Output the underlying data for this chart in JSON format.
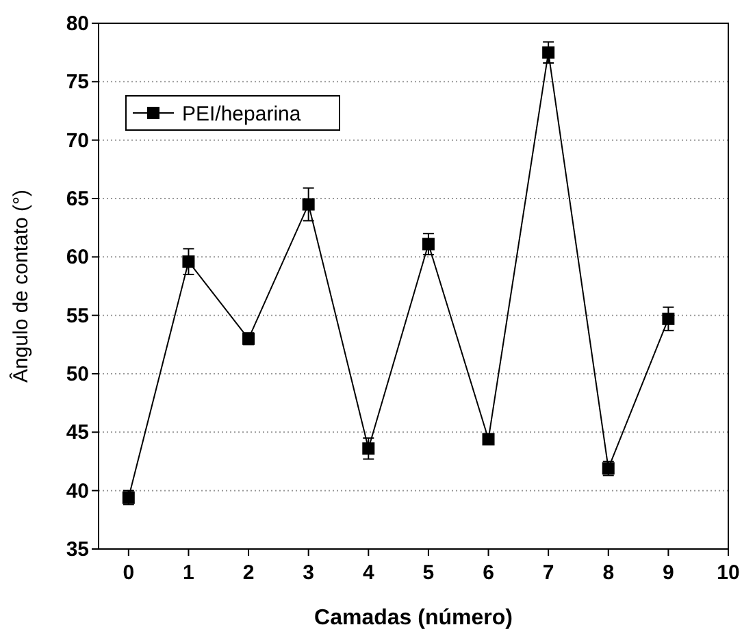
{
  "chart_data": {
    "type": "line",
    "xlabel": "Camadas (número)",
    "ylabel": "Ângulo de contato (°)",
    "x": [
      0,
      1,
      2,
      3,
      4,
      5,
      6,
      7,
      8,
      9
    ],
    "series": [
      {
        "name": "PEI/heparina",
        "color": "#000000",
        "values": [
          39.4,
          59.6,
          53.0,
          64.5,
          43.6,
          61.1,
          44.4,
          77.5,
          41.9,
          54.7
        ],
        "errors": [
          0.6,
          1.1,
          0.5,
          1.4,
          0.9,
          0.9,
          0.3,
          0.9,
          0.6,
          1.0
        ]
      }
    ],
    "xlim": [
      -0.5,
      10
    ],
    "xticks": [
      0,
      1,
      2,
      3,
      4,
      5,
      6,
      7,
      8,
      9,
      10
    ],
    "ylim": [
      35,
      80
    ],
    "yticks": [
      35,
      40,
      45,
      50,
      55,
      60,
      65,
      70,
      75,
      80
    ],
    "grid": "y",
    "legend": "top left",
    "marker": "square",
    "line_style": "solid"
  }
}
